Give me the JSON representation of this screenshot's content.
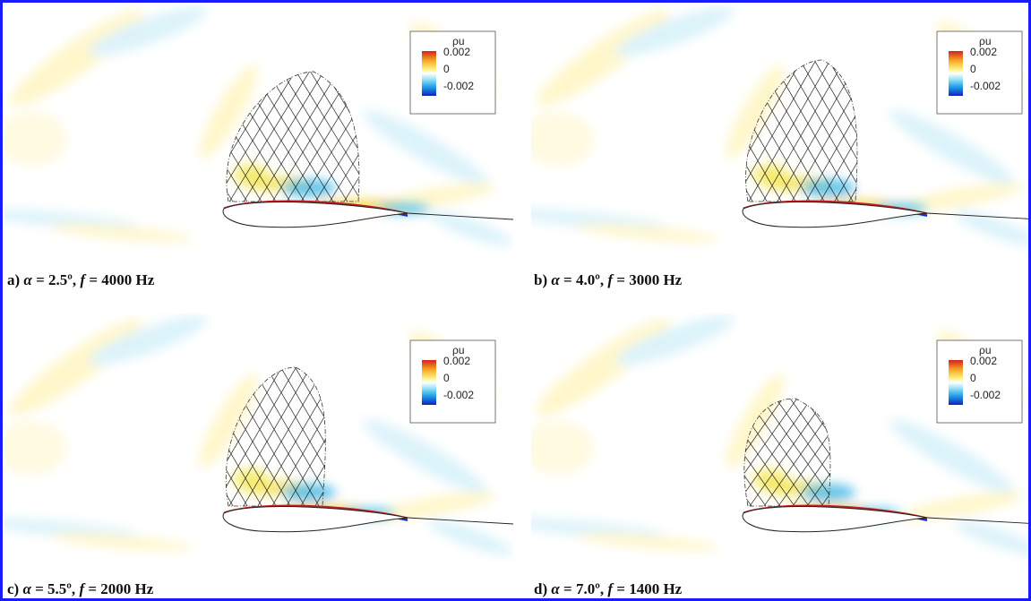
{
  "panels": [
    {
      "caption": {
        "label": "a)",
        "alpha": "α",
        "angle": "= 2.5º,",
        "f": "f",
        "freq": "= 4000 Hz"
      }
    },
    {
      "caption": {
        "label": "b)",
        "alpha": "α",
        "angle": "= 4.0º,",
        "f": "f",
        "freq": "= 3000 Hz"
      }
    },
    {
      "caption": {
        "label": "c)",
        "alpha": "α",
        "angle": "= 5.5º,",
        "f": "f",
        "freq": "= 2000 Hz"
      }
    },
    {
      "caption": {
        "label": "d)",
        "alpha": "α",
        "angle": "= 7.0º,",
        "f": "f",
        "freq": "= 1400 Hz"
      }
    }
  ],
  "legend": {
    "title": "ρu",
    "labels": [
      "0.002",
      "0",
      "-0.002"
    ]
  }
}
